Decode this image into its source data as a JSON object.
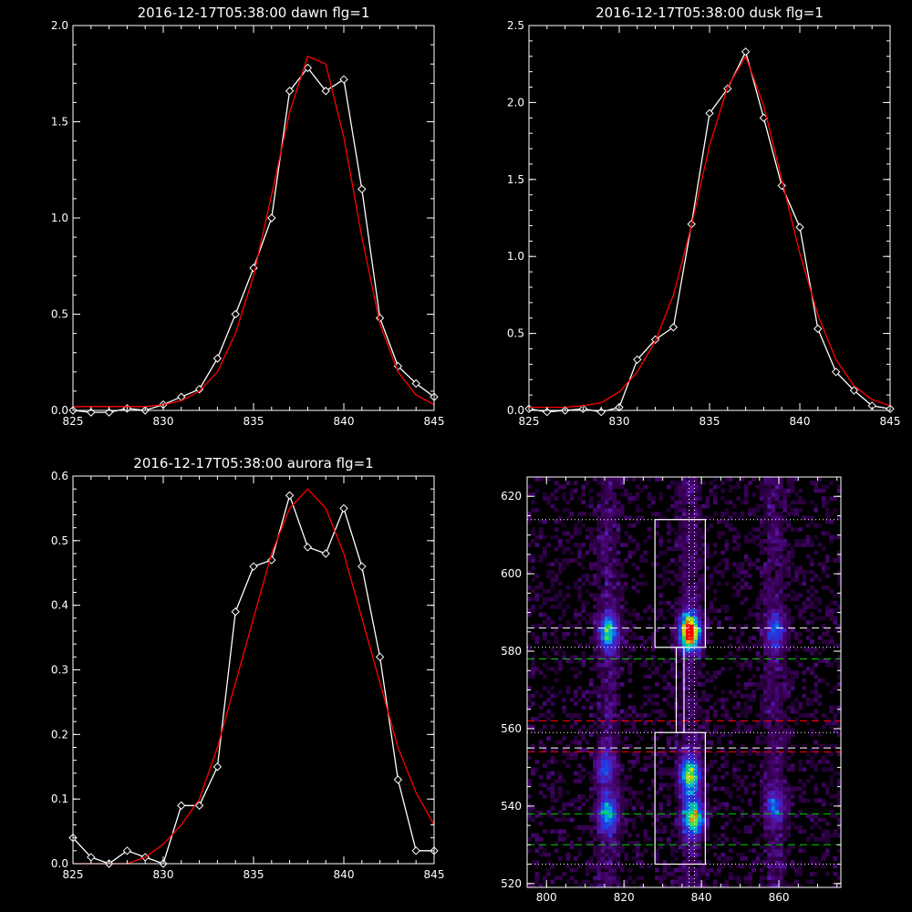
{
  "chart_data": [
    {
      "type": "line",
      "title": "2016-12-17T05:38:00 dawn flg=1",
      "xlim": [
        825,
        845
      ],
      "ylim": [
        0,
        2.0
      ],
      "xticks": [
        "825",
        "830",
        "835",
        "840",
        "845"
      ],
      "yticks": [
        "0.0",
        "0.5",
        "1.0",
        "1.5",
        "2.0"
      ],
      "x": [
        825,
        826,
        827,
        828,
        829,
        830,
        831,
        832,
        833,
        834,
        835,
        836,
        837,
        838,
        839,
        840,
        841,
        842,
        843,
        844,
        845
      ],
      "series": [
        {
          "color": "#ffffff",
          "marker": "diamond",
          "values": [
            0.0,
            -0.01,
            -0.01,
            0.01,
            0.0,
            0.03,
            0.07,
            0.11,
            0.27,
            0.5,
            0.74,
            1.0,
            1.66,
            1.78,
            1.66,
            1.72,
            1.15,
            0.48,
            0.23,
            0.14,
            0.07
          ]
        },
        {
          "color": "#ff0000",
          "marker": "none",
          "values": [
            0.02,
            0.02,
            0.02,
            0.02,
            0.02,
            0.03,
            0.05,
            0.1,
            0.2,
            0.4,
            0.7,
            1.12,
            1.55,
            1.84,
            1.8,
            1.42,
            0.9,
            0.45,
            0.2,
            0.08,
            0.03
          ]
        }
      ]
    },
    {
      "type": "line",
      "title": "2016-12-17T05:38:00 dusk flg=1",
      "xlim": [
        825,
        845
      ],
      "ylim": [
        0,
        2.5
      ],
      "xticks": [
        "825",
        "830",
        "835",
        "840",
        "845"
      ],
      "yticks": [
        "0.0",
        "0.5",
        "1.0",
        "1.5",
        "2.0",
        "2.5"
      ],
      "x": [
        825,
        826,
        827,
        828,
        829,
        830,
        831,
        832,
        833,
        834,
        835,
        836,
        837,
        838,
        839,
        840,
        841,
        842,
        843,
        844,
        845
      ],
      "series": [
        {
          "color": "#ffffff",
          "marker": "diamond",
          "values": [
            0.01,
            -0.01,
            0.0,
            0.01,
            -0.01,
            0.02,
            0.33,
            0.46,
            0.54,
            1.21,
            1.93,
            2.09,
            2.33,
            1.9,
            1.46,
            1.19,
            0.53,
            0.25,
            0.13,
            0.03,
            0.01
          ]
        },
        {
          "color": "#ff0000",
          "marker": "none",
          "values": [
            0.02,
            0.02,
            0.02,
            0.03,
            0.05,
            0.12,
            0.25,
            0.45,
            0.75,
            1.2,
            1.72,
            2.1,
            2.3,
            1.98,
            1.5,
            1.02,
            0.62,
            0.33,
            0.16,
            0.07,
            0.03
          ]
        }
      ]
    },
    {
      "type": "line",
      "title": "2016-12-17T05:38:00 aurora flg=1",
      "xlim": [
        825,
        845
      ],
      "ylim": [
        0,
        0.6
      ],
      "xticks": [
        "825",
        "830",
        "835",
        "840",
        "845"
      ],
      "yticks": [
        "0.0",
        "0.1",
        "0.2",
        "0.3",
        "0.4",
        "0.5",
        "0.6"
      ],
      "x": [
        825,
        826,
        827,
        828,
        829,
        830,
        831,
        832,
        833,
        834,
        835,
        836,
        837,
        838,
        839,
        840,
        841,
        842,
        843,
        844,
        845
      ],
      "series": [
        {
          "color": "#ffffff",
          "marker": "diamond",
          "values": [
            0.04,
            0.01,
            0.0,
            0.02,
            0.01,
            0.0,
            0.09,
            0.09,
            0.15,
            0.39,
            0.46,
            0.47,
            0.57,
            0.49,
            0.48,
            0.55,
            0.46,
            0.32,
            0.13,
            0.02,
            0.02
          ]
        },
        {
          "color": "#ff0000",
          "marker": "none",
          "values": [
            0.0,
            0.0,
            0.0,
            0.0,
            0.01,
            0.03,
            0.06,
            0.1,
            0.18,
            0.28,
            0.38,
            0.48,
            0.55,
            0.58,
            0.55,
            0.48,
            0.38,
            0.28,
            0.18,
            0.11,
            0.06
          ]
        }
      ]
    },
    {
      "type": "heatmap",
      "xlim": [
        795,
        876
      ],
      "ylim": [
        519,
        625
      ],
      "xticks": [
        "800",
        "820",
        "840",
        "860"
      ],
      "yticks": [
        "520",
        "540",
        "560",
        "580",
        "600",
        "620"
      ],
      "blobs": [
        {
          "x": 816,
          "y": 585,
          "peak": 0.55
        },
        {
          "x": 837,
          "y": 585,
          "peak": 1.0
        },
        {
          "x": 837,
          "y": 548,
          "peak": 0.65
        },
        {
          "x": 838,
          "y": 537,
          "peak": 0.7
        },
        {
          "x": 816,
          "y": 538,
          "peak": 0.5
        },
        {
          "x": 815,
          "y": 550,
          "peak": 0.3
        },
        {
          "x": 859,
          "y": 585,
          "peak": 0.3
        },
        {
          "x": 859,
          "y": 540,
          "peak": 0.3
        }
      ],
      "boxes": [
        {
          "x0": 828,
          "x1": 841,
          "y0": 581,
          "y1": 614
        },
        {
          "x0": 828,
          "x1": 841,
          "y0": 525,
          "y1": 559
        },
        {
          "x0": 833.5,
          "x1": 835.5,
          "y0": 559,
          "y1": 581
        }
      ],
      "hlines": [
        {
          "y": 614,
          "color": "#ffffff",
          "style": "dotted"
        },
        {
          "y": 586,
          "color": "#ffffff",
          "style": "dashed"
        },
        {
          "y": 581,
          "color": "#ffffff",
          "style": "dotted"
        },
        {
          "y": 578,
          "color": "#00cc00",
          "style": "dashed"
        },
        {
          "y": 562,
          "color": "#ff0000",
          "style": "dashed"
        },
        {
          "y": 559,
          "color": "#ffffff",
          "style": "dotted"
        },
        {
          "y": 555,
          "color": "#ffffff",
          "style": "dashed"
        },
        {
          "y": 554,
          "color": "#ff0000",
          "style": "dashed"
        },
        {
          "y": 538,
          "color": "#00cc00",
          "style": "dashed"
        },
        {
          "y": 530,
          "color": "#00cc00",
          "style": "dashed"
        },
        {
          "y": 525,
          "color": "#ffffff",
          "style": "dotted"
        }
      ],
      "vlines": [
        {
          "x": 836.8,
          "color": "#ffffff",
          "style": "dotted"
        },
        {
          "x": 838.2,
          "color": "#ffffff",
          "style": "dotted"
        }
      ]
    }
  ]
}
